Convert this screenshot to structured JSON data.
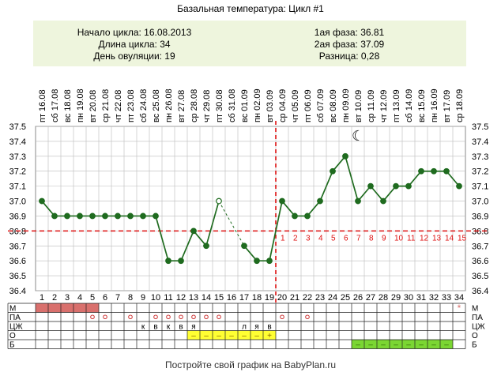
{
  "title": "Базальная температура: Цикл #1",
  "stats": {
    "cycle_start_label": "Начало цикла: 16.08.2013",
    "cycle_length_label": "Длина цикла: 34",
    "ovulation_day_label": "День овуляции: 19",
    "phase1_label": "1ая фаза: 36.81",
    "phase2_label": "2ая фаза: 37.09",
    "difference_label": "Разница: 0,28"
  },
  "footer": "Постройте свой график на BabyPlan.ru",
  "colors": {
    "line": "#1f6b1f",
    "coverline": "#dd1111",
    "grid": "#bbbbbb",
    "stats_bg": "#eef5dd",
    "menstruation": "#d9706d",
    "mucus_yellow": "#ffff33",
    "bar_green": "#7bd633"
  },
  "chart_data": {
    "type": "line",
    "title": "Базальная температура: Цикл #1",
    "ylim": [
      36.4,
      37.5
    ],
    "yticks": [
      "37.5",
      "37.4",
      "37.3",
      "37.2",
      "37.1",
      "37.0",
      "36.9",
      "36.8",
      "36.7",
      "36.6",
      "36.5",
      "36.4"
    ],
    "grid": true,
    "coverline": 36.8,
    "ovulation_day": 19,
    "days": [
      1,
      2,
      3,
      4,
      5,
      6,
      7,
      8,
      9,
      10,
      11,
      12,
      13,
      14,
      15,
      16,
      17,
      18,
      19,
      20,
      21,
      22,
      23,
      24,
      25,
      26,
      27,
      28,
      29,
      30,
      31,
      32,
      33,
      34
    ],
    "dates": [
      "16.08",
      "17.08",
      "18.08",
      "19.08",
      "20.08",
      "21.08",
      "22.08",
      "23.08",
      "24.08",
      "25.08",
      "26.08",
      "27.08",
      "28.08",
      "29.08",
      "30.08",
      "31.08",
      "01.09",
      "02.09",
      "03.09",
      "04.09",
      "05.09",
      "06.09",
      "07.09",
      "08.09",
      "09.09",
      "10.09",
      "11.09",
      "12.09",
      "13.09",
      "14.09",
      "15.09",
      "16.09",
      "17.09",
      "18.09"
    ],
    "weekdays": [
      "пт",
      "сб",
      "вс",
      "пн",
      "вт",
      "ср",
      "чт",
      "пт",
      "сб",
      "вс",
      "пн",
      "вт",
      "ср",
      "чт",
      "пт",
      "сб",
      "вс",
      "пн",
      "вт",
      "ср",
      "чт",
      "пт",
      "сб",
      "вс",
      "пн",
      "вт",
      "ср",
      "чт",
      "пт",
      "сб",
      "вс",
      "пн",
      "вт",
      "ср"
    ],
    "temperatures": [
      37.0,
      36.9,
      36.9,
      36.9,
      36.9,
      36.9,
      36.9,
      36.9,
      36.9,
      36.9,
      36.6,
      36.6,
      36.8,
      36.7,
      37.0,
      null,
      36.7,
      36.6,
      36.6,
      37.0,
      36.9,
      36.9,
      37.0,
      37.2,
      37.3,
      37.0,
      37.1,
      37.0,
      37.1,
      37.1,
      37.2,
      37.2,
      37.2,
      37.1
    ],
    "open_points": [
      15
    ],
    "dashed_gap": [
      15,
      17
    ],
    "luteal_numbers": [
      "1",
      "2",
      "3",
      "4",
      "5",
      "6",
      "7",
      "8",
      "9",
      "10",
      "11",
      "12",
      "13",
      "14",
      "15"
    ],
    "luteal_start_day": 20,
    "moon_day": 26,
    "rows": {
      "labels": [
        "М",
        "ПА",
        "ЦЖ",
        "О",
        "Б"
      ],
      "menstruation_days": [
        1,
        2,
        3,
        4,
        5
      ],
      "menstruation_marker_day": 34,
      "menstruation_marker": "*",
      "pa_days": [
        5,
        6,
        8,
        10,
        11,
        12,
        13,
        14,
        15,
        20,
        22
      ],
      "pa_symbol": "o",
      "cervical_mucus": [
        {
          "day": 9,
          "value": "к"
        },
        {
          "day": 10,
          "value": "в"
        },
        {
          "day": 11,
          "value": "к"
        },
        {
          "day": 12,
          "value": "в"
        },
        {
          "day": 13,
          "value": "я"
        },
        {
          "day": 17,
          "value": "л"
        },
        {
          "day": 18,
          "value": "я"
        },
        {
          "day": 19,
          "value": "в"
        }
      ],
      "ovulation_test": [
        {
          "day": 13,
          "value": "–"
        },
        {
          "day": 14,
          "value": "–"
        },
        {
          "day": 15,
          "value": "–"
        },
        {
          "day": 16,
          "value": "–"
        },
        {
          "day": 17,
          "value": "–"
        },
        {
          "day": 18,
          "value": "–"
        },
        {
          "day": 19,
          "value": "+"
        }
      ],
      "pregnancy_test": [
        {
          "day": 26,
          "value": "–"
        },
        {
          "day": 27,
          "value": "–"
        },
        {
          "day": 28,
          "value": "–"
        },
        {
          "day": 29,
          "value": "–"
        },
        {
          "day": 30,
          "value": "–"
        },
        {
          "day": 31,
          "value": "–"
        },
        {
          "day": 32,
          "value": "–"
        },
        {
          "day": 33,
          "value": "–"
        }
      ]
    }
  }
}
